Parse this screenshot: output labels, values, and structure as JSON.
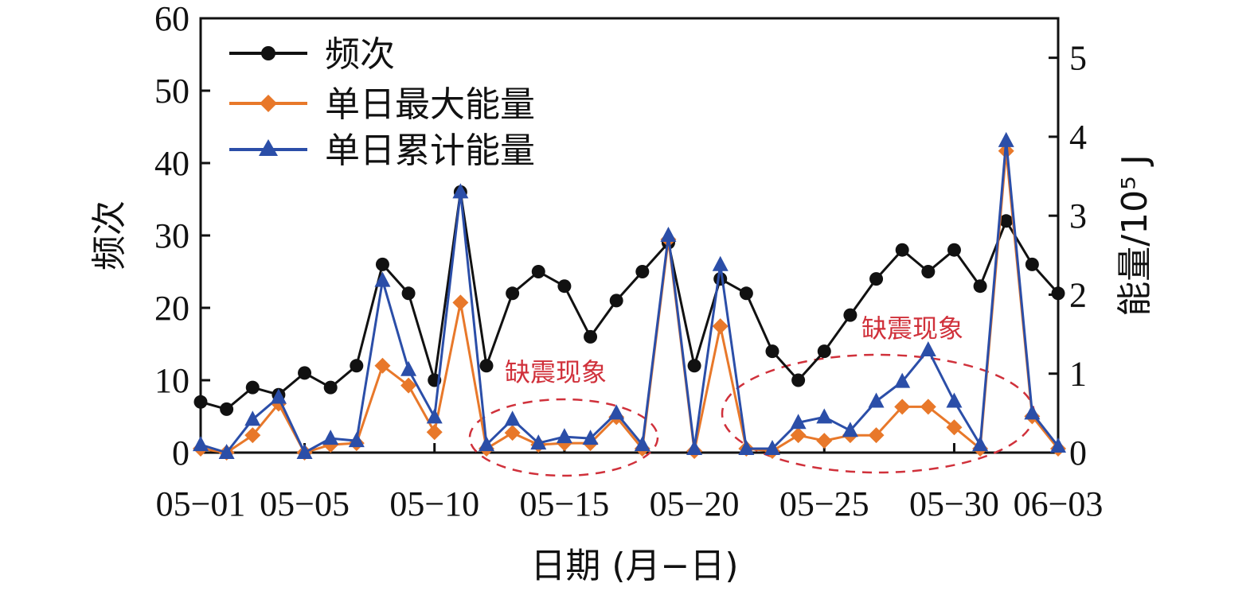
{
  "chart_data": {
    "type": "line",
    "xlabel": "日期 (月−日)",
    "ylabel_left": "频次",
    "ylabel_right": "能量/10⁵ J",
    "x_tick_labels": [
      "05−01",
      "05−05",
      "05−10",
      "05−15",
      "05−20",
      "05−25",
      "05−30",
      "06−03"
    ],
    "x": [
      "05-01",
      "05-02",
      "05-03",
      "05-04",
      "05-05",
      "05-06",
      "05-07",
      "05-08",
      "05-09",
      "05-10",
      "05-11",
      "05-12",
      "05-13",
      "05-14",
      "05-15",
      "05-16",
      "05-17",
      "05-18",
      "05-19",
      "05-20",
      "05-21",
      "05-22",
      "05-23",
      "05-24",
      "05-25",
      "05-26",
      "05-27",
      "05-28",
      "05-29",
      "05-30",
      "05-31",
      "06-01",
      "06-02",
      "06-03"
    ],
    "xlim": [
      "05-01",
      "06-03"
    ],
    "ylim_left": [
      0,
      60
    ],
    "y_ticks_left": [
      0,
      10,
      20,
      30,
      40,
      50,
      60
    ],
    "ylim_right": [
      0,
      5.5
    ],
    "y_ticks_right": [
      0,
      1,
      2,
      3,
      4,
      5
    ],
    "series": [
      {
        "name": "频次",
        "axis": "left",
        "color": "#111111",
        "marker": "circle",
        "values": [
          7,
          6,
          9,
          8,
          11,
          9,
          12,
          26,
          22,
          10,
          36,
          12,
          22,
          25,
          23,
          16,
          21,
          25,
          29,
          12,
          24,
          22,
          14,
          10,
          14,
          19,
          24,
          28,
          25,
          28,
          23,
          32,
          26,
          22
        ]
      },
      {
        "name": "单日最大能量",
        "axis": "right",
        "color": "#e8782a",
        "marker": "diamond",
        "values": [
          0.05,
          0.0,
          0.22,
          0.62,
          0.0,
          0.1,
          0.12,
          1.1,
          0.85,
          0.26,
          1.9,
          0.05,
          0.25,
          0.1,
          0.12,
          0.12,
          0.45,
          0.05,
          2.7,
          0.02,
          1.6,
          0.05,
          0.02,
          0.22,
          0.15,
          0.22,
          0.22,
          0.58,
          0.58,
          0.32,
          0.05,
          3.82,
          0.46,
          0.05
        ]
      },
      {
        "name": "单日累计能量",
        "axis": "right",
        "color": "#2b4ea8",
        "marker": "triangle",
        "values": [
          0.1,
          0.0,
          0.42,
          0.7,
          0.0,
          0.18,
          0.15,
          2.18,
          1.05,
          0.45,
          3.3,
          0.1,
          0.42,
          0.12,
          0.2,
          0.18,
          0.5,
          0.1,
          2.75,
          0.05,
          2.38,
          0.05,
          0.05,
          0.38,
          0.45,
          0.28,
          0.65,
          0.9,
          1.3,
          0.65,
          0.1,
          3.95,
          0.5,
          0.08
        ]
      }
    ],
    "legend_position": "top-left",
    "annotations": [
      "缺震现象",
      "缺震现象"
    ],
    "grid": false
  }
}
